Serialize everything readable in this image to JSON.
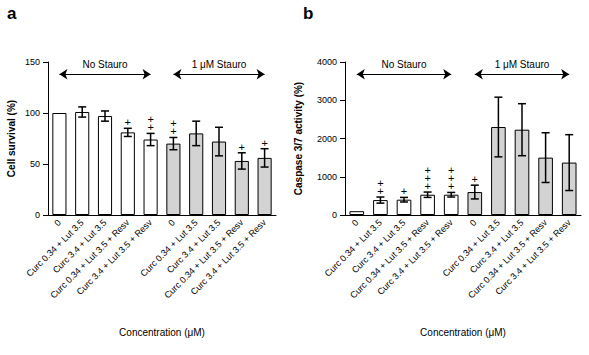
{
  "chart_data": [
    {
      "type": "bar",
      "title": "a",
      "x_label": "Concentration (μM)",
      "y_label": "Cell survival (%)",
      "categories": [
        "0",
        "Curc 0.34 + Lut 3.5",
        "Curc 3.4 + Lut 3.5",
        "Curc 0.34 + Lut 3.5 + Resv",
        "Curc 3.4 + Lut 3.5 + Resv",
        "0",
        "Curc 0.34 + Lut 3.5",
        "Curc 3.4 + Lut 3.5",
        "Curc 0.34 + Lut 3.5 + Resv",
        "Curc 3.4 + Lut 3.5 + Resv"
      ],
      "values": [
        100,
        101,
        97,
        81,
        74,
        70,
        80,
        72,
        53,
        56
      ],
      "errors": [
        0,
        5,
        5,
        4,
        6,
        6,
        12,
        14,
        8,
        9
      ],
      "significance": [
        "",
        "",
        "",
        "+",
        "++",
        "++",
        "",
        "",
        "+",
        "+"
      ],
      "colors": [
        "#ffffff",
        "#ffffff",
        "#ffffff",
        "#ffffff",
        "#ffffff",
        "#d3d3d3",
        "#d3d3d3",
        "#d3d3d3",
        "#d3d3d3",
        "#d3d3d3"
      ],
      "groups": [
        {
          "label": "No Stauro",
          "start": 0,
          "end": 4
        },
        {
          "label": "1 μM Stauro",
          "start": 5,
          "end": 9
        }
      ],
      "ylim": [
        0,
        150
      ],
      "yticks": [
        0,
        50,
        100,
        150
      ],
      "grid": false
    },
    {
      "type": "bar",
      "title": "b",
      "x_label": "Concentration (μM)",
      "y_label": "Caspase 3/7 activity (%)",
      "categories": [
        "0",
        "Curc 0.34 + Lut 3.5",
        "Curc 3.4 + Lut 3.5",
        "Curc 0.34 + Lut 3.5 + Resv",
        "Curc 3.4 + Lut 3.5 + Resv",
        "0",
        "Curc 0.34 + Lut 3.5",
        "Curc 3.4 + Lut 3.5",
        "Curc 0.34 + Lut 3.5 + Resv",
        "Curc 3.4 + Lut 3.5 + Resv"
      ],
      "values": [
        100,
        390,
        400,
        530,
        530,
        600,
        2300,
        2230,
        1500,
        1370
      ],
      "errors": [
        0,
        80,
        60,
        70,
        60,
        180,
        780,
        680,
        650,
        730
      ],
      "significance": [
        "",
        "++",
        "+",
        "+++",
        "+++",
        "+",
        "",
        "",
        "",
        ""
      ],
      "colors": [
        "#ffffff",
        "#ffffff",
        "#ffffff",
        "#ffffff",
        "#ffffff",
        "#d3d3d3",
        "#d3d3d3",
        "#d3d3d3",
        "#d3d3d3",
        "#d3d3d3"
      ],
      "groups": [
        {
          "label": "No Stauro",
          "start": 0,
          "end": 4
        },
        {
          "label": "1 μM Stauro",
          "start": 5,
          "end": 9
        }
      ],
      "ylim": [
        0,
        4000
      ],
      "yticks": [
        0,
        1000,
        2000,
        3000,
        4000
      ],
      "grid": false
    }
  ]
}
